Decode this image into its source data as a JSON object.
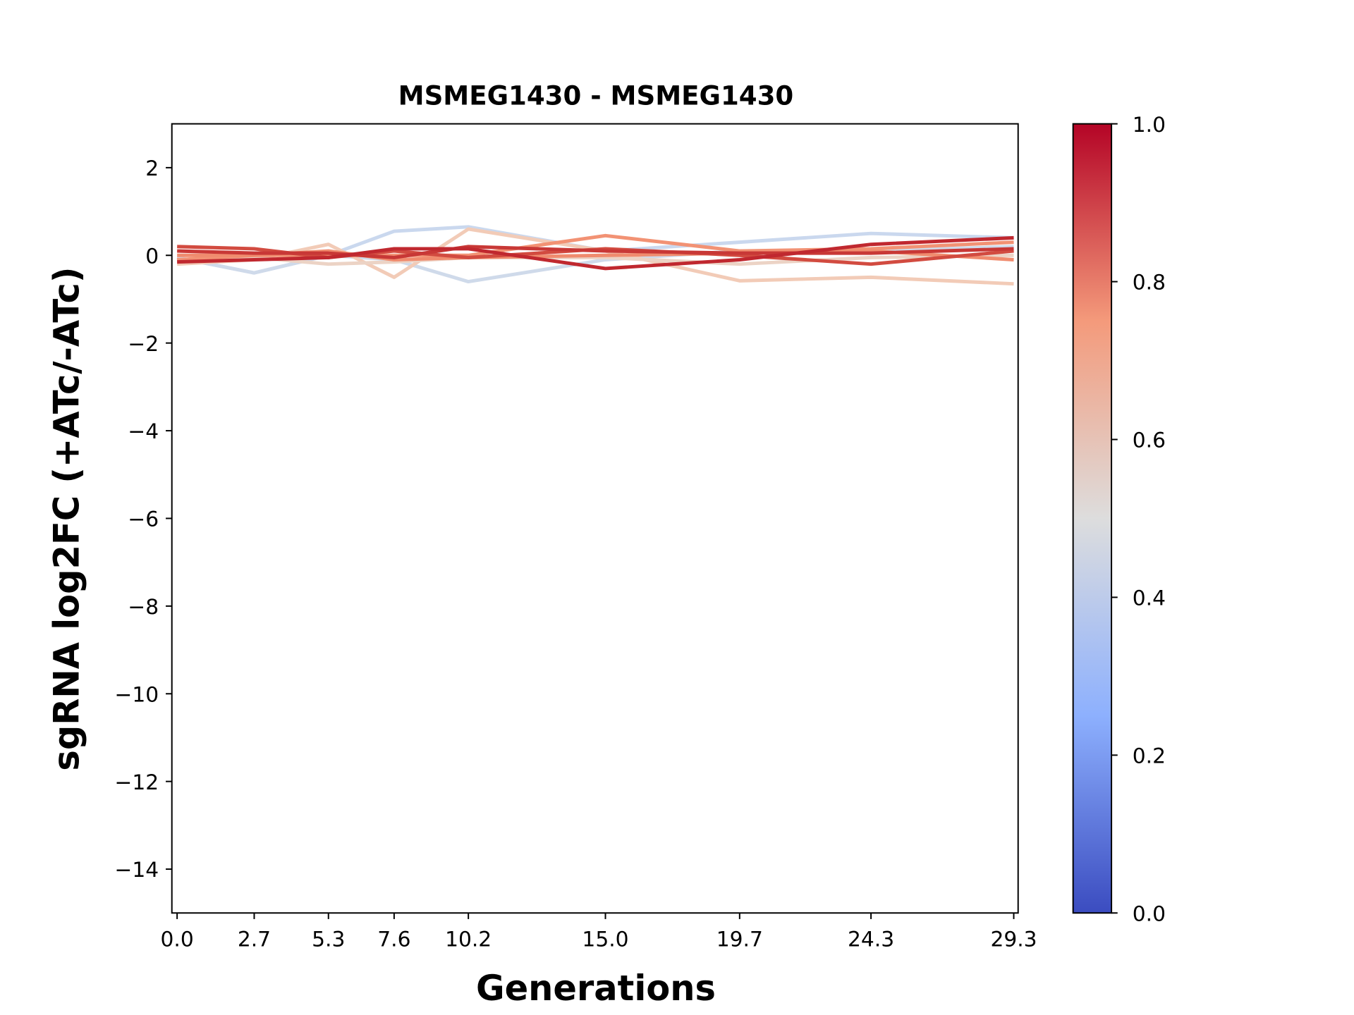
{
  "chart_data": {
    "type": "line",
    "title": "MSMEG1430 - MSMEG1430",
    "xlabel": "Generations",
    "ylabel": "sgRNA log2FC (+ATc/-ATc)",
    "x": [
      0.0,
      2.7,
      5.3,
      7.6,
      10.2,
      15.0,
      19.7,
      24.3,
      29.3
    ],
    "x_tick_labels": [
      "0.0",
      "2.7",
      "5.3",
      "7.6",
      "10.2",
      "15.0",
      "19.7",
      "24.3",
      "29.3"
    ],
    "ylim": [
      -15,
      3
    ],
    "y_ticks": [
      2,
      0,
      -2,
      -4,
      -6,
      -8,
      -10,
      -12,
      -14
    ],
    "y_tick_labels": [
      "2",
      "0",
      "−2",
      "−4",
      "−6",
      "−8",
      "−10",
      "−12",
      "−14"
    ],
    "grid": false,
    "colorbar": {
      "colormap": "coolwarm",
      "range": [
        0.0,
        1.0
      ],
      "tick_labels": [
        "0.0",
        "0.2",
        "0.4",
        "0.6",
        "0.8",
        "1.0"
      ],
      "stops": [
        "#3b4cc0",
        "#8db0fe",
        "#dddddd",
        "#f49a7b",
        "#b40426"
      ]
    },
    "series": [
      {
        "color_value": 0.42,
        "color": "#cad8ee",
        "values": [
          -0.05,
          -0.4,
          0.0,
          0.55,
          0.65,
          0.1,
          0.3,
          0.5,
          0.4
        ]
      },
      {
        "color_value": 0.44,
        "color": "#cfdaea",
        "values": [
          -0.05,
          -0.4,
          0.0,
          -0.1,
          -0.6,
          -0.1,
          0.1,
          0.1,
          0.2
        ]
      },
      {
        "color_value": 0.62,
        "color": "#f2cbb7",
        "values": [
          -0.2,
          -0.1,
          0.25,
          -0.5,
          0.6,
          0.1,
          -0.58,
          -0.5,
          -0.65
        ]
      },
      {
        "color_value": 0.58,
        "color": "#ecd3c5",
        "values": [
          -0.1,
          -0.05,
          -0.2,
          -0.15,
          -0.05,
          -0.05,
          -0.2,
          -0.05,
          0.0
        ]
      },
      {
        "color_value": 0.78,
        "color": "#f29274",
        "values": [
          -0.1,
          0.0,
          0.0,
          0.0,
          0.0,
          0.45,
          0.1,
          0.15,
          0.3
        ]
      },
      {
        "color_value": 0.8,
        "color": "#f08b6e",
        "values": [
          0.0,
          0.0,
          0.1,
          -0.1,
          -0.05,
          0.0,
          0.05,
          0.1,
          -0.1
        ]
      },
      {
        "color_value": 0.9,
        "color": "#d24b40",
        "values": [
          0.2,
          0.15,
          -0.05,
          0.1,
          -0.05,
          0.15,
          0.0,
          -0.2,
          0.1
        ]
      },
      {
        "color_value": 0.95,
        "color": "#c83836",
        "values": [
          0.1,
          0.05,
          0.05,
          -0.05,
          0.2,
          0.1,
          0.05,
          0.05,
          0.15
        ]
      },
      {
        "color_value": 0.97,
        "color": "#c0282f",
        "values": [
          -0.15,
          -0.1,
          -0.05,
          0.15,
          0.15,
          -0.3,
          -0.1,
          0.25,
          0.4
        ]
      }
    ]
  }
}
